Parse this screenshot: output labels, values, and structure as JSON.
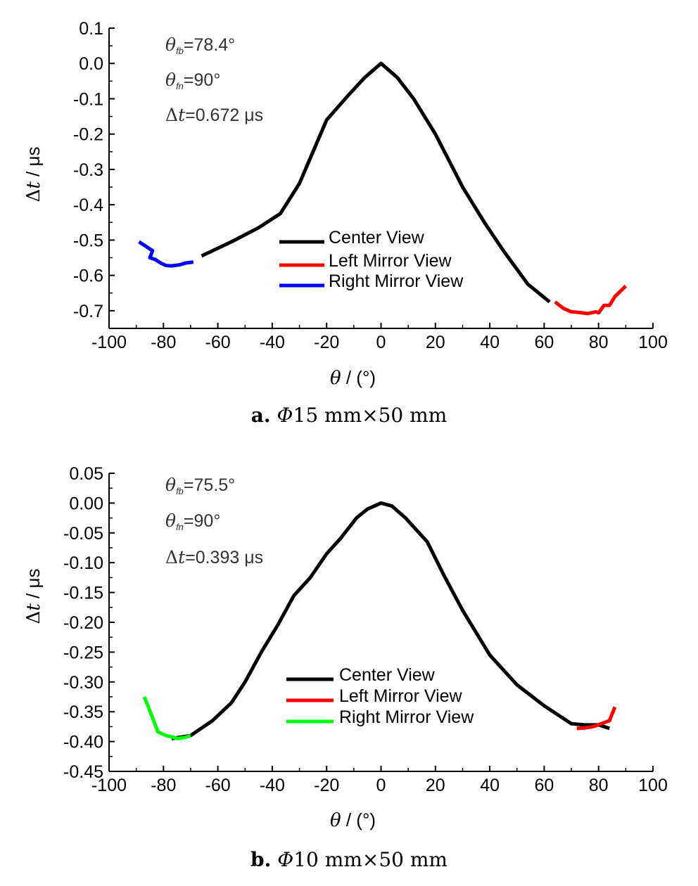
{
  "chart_data": [
    {
      "type": "line",
      "caption_letter": "a.",
      "caption_symbol": "Φ",
      "caption_text": "15 mm×50 mm",
      "xlabel_symbol": "θ",
      "xlabel_unit": " / (°)",
      "ylabel_symbol": "t",
      "ylabel_prefix": "Δ",
      "ylabel_unit": " / μs",
      "xlim": [
        -100,
        100
      ],
      "ylim": [
        -0.75,
        0.1
      ],
      "xticks": [
        "-100",
        "-80",
        "-60",
        "-40",
        "-20",
        "0",
        "20",
        "40",
        "60",
        "80",
        "100"
      ],
      "yticks": [
        "0.1",
        "0.0",
        "-0.1",
        "-0.2",
        "-0.3",
        "-0.4",
        "-0.5",
        "-0.6",
        "-0.7"
      ],
      "annotations": [
        {
          "symbol": "θ",
          "sub": "fb",
          "text": "=78.4°"
        },
        {
          "symbol": "θ",
          "sub": "fn",
          "text": "=90°"
        },
        {
          "symbol": "Δt",
          "sub": "",
          "text": "=0.672 μs"
        }
      ],
      "legend_placement": "center-right",
      "series": [
        {
          "name": "Center View",
          "color": "#000000",
          "x": [
            -66,
            -55,
            -45,
            -37,
            -30,
            -20,
            -12,
            -6,
            0,
            6,
            12,
            20,
            30,
            38,
            45,
            54,
            62
          ],
          "y": [
            -0.545,
            -0.505,
            -0.465,
            -0.425,
            -0.34,
            -0.16,
            -0.09,
            -0.04,
            0.0,
            -0.04,
            -0.1,
            -0.2,
            -0.35,
            -0.45,
            -0.53,
            -0.625,
            -0.675
          ]
        },
        {
          "name": "Left Mirror View",
          "color": "#ff0000",
          "x": [
            64,
            67,
            70,
            73,
            76,
            79,
            80,
            82,
            84,
            86,
            90
          ],
          "y": [
            -0.675,
            -0.693,
            -0.703,
            -0.705,
            -0.708,
            -0.703,
            -0.706,
            -0.685,
            -0.685,
            -0.66,
            -0.63
          ]
        },
        {
          "name": "Right Mirror View",
          "color": "#0000ff",
          "x": [
            -89,
            -84,
            -85,
            -83,
            -81,
            -79,
            -77,
            -74,
            -72,
            -69
          ],
          "y": [
            -0.505,
            -0.53,
            -0.55,
            -0.555,
            -0.565,
            -0.572,
            -0.573,
            -0.57,
            -0.565,
            -0.562
          ]
        }
      ]
    },
    {
      "type": "line",
      "caption_letter": "b.",
      "caption_symbol": "Φ",
      "caption_text": "10 mm×50 mm",
      "xlabel_symbol": "θ",
      "xlabel_unit": " / (°)",
      "ylabel_symbol": "t",
      "ylabel_prefix": "Δ",
      "ylabel_unit": " / μs",
      "xlim": [
        -100,
        100
      ],
      "ylim": [
        -0.45,
        0.05
      ],
      "xticks": [
        "-100",
        "-80",
        "-60",
        "-40",
        "-20",
        "0",
        "20",
        "40",
        "60",
        "80",
        "100"
      ],
      "yticks": [
        "0.05",
        "0.00",
        "-0.05",
        "-0.10",
        "-0.15",
        "-0.20",
        "-0.25",
        "-0.30",
        "-0.35",
        "-0.40",
        "-0.45"
      ],
      "annotations": [
        {
          "symbol": "θ",
          "sub": "fb",
          "text": "=75.5°"
        },
        {
          "symbol": "θ",
          "sub": "fn",
          "text": "=90°"
        },
        {
          "symbol": "Δt",
          "sub": "",
          "text": "=0.393 μs"
        }
      ],
      "legend_placement": "center-right",
      "series": [
        {
          "name": "Center View",
          "color": "#000000",
          "x": [
            -77,
            -70,
            -62,
            -55,
            -50,
            -44,
            -38,
            -32,
            -26,
            -20,
            -15,
            -9,
            -5,
            0,
            4,
            9,
            17,
            23,
            30,
            40,
            50,
            60,
            70,
            75,
            80,
            84
          ],
          "y": [
            -0.395,
            -0.39,
            -0.365,
            -0.335,
            -0.3,
            -0.25,
            -0.205,
            -0.155,
            -0.125,
            -0.085,
            -0.06,
            -0.025,
            -0.01,
            0.0,
            -0.005,
            -0.025,
            -0.065,
            -0.12,
            -0.18,
            -0.255,
            -0.305,
            -0.34,
            -0.37,
            -0.372,
            -0.372,
            -0.378
          ]
        },
        {
          "name": "Left Mirror View",
          "color": "#ff0000",
          "x": [
            72,
            75,
            78,
            81,
            84,
            86
          ],
          "y": [
            -0.378,
            -0.377,
            -0.375,
            -0.37,
            -0.365,
            -0.342
          ]
        },
        {
          "name": "Right Mirror View",
          "color": "#00ff00",
          "x": [
            -87,
            -84,
            -82,
            -79,
            -77,
            -75,
            -72,
            -70
          ],
          "y": [
            -0.325,
            -0.36,
            -0.384,
            -0.39,
            -0.392,
            -0.395,
            -0.393,
            -0.39
          ]
        }
      ]
    }
  ]
}
